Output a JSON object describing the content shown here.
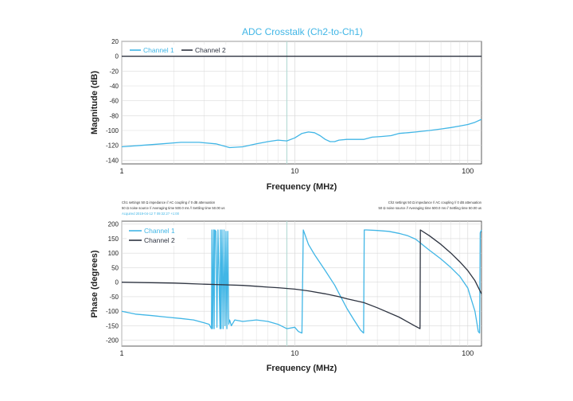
{
  "colors": {
    "channel1": "#41b6e6",
    "channel2": "#2d3340",
    "title": "#41b6e6",
    "marker": "#b7dbd6",
    "grid": "#d9d9d9"
  },
  "chart_data": [
    {
      "type": "line",
      "title": "ADC Crosstalk (Ch2-to-Ch1)",
      "xlabel": "Frequency (MHz)",
      "ylabel": "Magnitude (dB)",
      "xscale": "log",
      "xlim": [
        1,
        120
      ],
      "ylim": [
        -145,
        20
      ],
      "yticks": [
        20,
        0,
        -20,
        -40,
        -60,
        -80,
        -100,
        -120,
        -140
      ],
      "xtick_labels": [
        "1",
        "10",
        "100"
      ],
      "grid": true,
      "legend_position": "top-left",
      "vertical_marker_x": 9,
      "series": [
        {
          "name": "Channel 1",
          "x": [
            1,
            1.3,
            1.7,
            2.2,
            2.8,
            3.5,
            4.2,
            5,
            6,
            7,
            8,
            9,
            10,
            11,
            12,
            13,
            14,
            15,
            16,
            17,
            18,
            20,
            22,
            25,
            28,
            32,
            36,
            40,
            45,
            50,
            55,
            60,
            70,
            80,
            90,
            100,
            110,
            120
          ],
          "values": [
            -122,
            -120,
            -118,
            -116,
            -116,
            -118,
            -123,
            -122,
            -118,
            -115,
            -113,
            -114,
            -110,
            -104,
            -102,
            -103,
            -107,
            -112,
            -115,
            -115,
            -113,
            -112,
            -112,
            -112,
            -109,
            -108,
            -107,
            -104,
            -103,
            -102,
            -101,
            -100,
            -98,
            -96,
            -94,
            -92,
            -89,
            -85
          ]
        },
        {
          "name": "Channel 2",
          "x": [
            1,
            120
          ],
          "values": [
            0,
            0
          ]
        }
      ]
    },
    {
      "type": "line",
      "xlabel": "Frequency (MHz)",
      "ylabel": "Phase (degrees)",
      "xscale": "log",
      "xlim": [
        1,
        120
      ],
      "ylim": [
        -220,
        210
      ],
      "yticks": [
        200,
        150,
        100,
        50,
        0,
        -50,
        -100,
        -150,
        -200
      ],
      "xtick_labels": [
        "1",
        "10",
        "100"
      ],
      "grid": true,
      "legend_position": "top-left",
      "vertical_marker_x": 9,
      "series": [
        {
          "name": "Channel 1",
          "x": [
            1,
            1.2,
            1.5,
            1.8,
            2.2,
            2.6,
            3.0,
            3.2,
            3.3,
            3.32,
            3.35,
            3.4,
            3.42,
            3.45,
            3.5,
            3.55,
            3.6,
            3.7,
            3.72,
            3.75,
            3.8,
            3.85,
            3.9,
            3.95,
            4.0,
            4.05,
            4.1,
            4.15,
            4.2,
            4.3,
            4.5,
            5,
            6,
            7,
            8,
            9,
            10,
            10.5,
            11,
            11.2,
            12,
            13,
            15,
            17,
            20,
            22,
            24,
            25,
            25.2,
            26,
            30,
            35,
            40,
            45,
            50,
            55,
            60,
            70,
            80,
            90,
            100,
            110,
            115,
            117,
            118,
            120
          ],
          "values": [
            -100,
            -110,
            -115,
            -120,
            -125,
            -130,
            -140,
            -145,
            -160,
            180,
            -160,
            180,
            -160,
            180,
            175,
            -155,
            180,
            -160,
            180,
            -160,
            180,
            -160,
            180,
            -150,
            175,
            -160,
            175,
            -145,
            -130,
            -150,
            -130,
            -135,
            -130,
            -135,
            -145,
            -160,
            -155,
            -170,
            -175,
            180,
            130,
            95,
            40,
            -10,
            -90,
            -130,
            -165,
            -175,
            180,
            180,
            178,
            175,
            168,
            160,
            148,
            128,
            110,
            80,
            50,
            20,
            -20,
            -100,
            -170,
            -175,
            170,
            180
          ]
        },
        {
          "name": "Channel 2",
          "x": [
            1,
            2,
            3,
            4,
            5,
            6,
            7,
            8,
            10,
            12,
            15,
            18,
            20,
            25,
            30,
            40,
            50,
            53,
            53.2,
            60,
            70,
            80,
            90,
            100,
            110,
            120
          ],
          "values": [
            0,
            -3,
            -7,
            -9,
            -11,
            -14,
            -17,
            -19,
            -24,
            -30,
            -40,
            -50,
            -57,
            -70,
            -88,
            -120,
            -152,
            -160,
            180,
            160,
            130,
            100,
            70,
            40,
            5,
            -40
          ]
        }
      ],
      "notes": {
        "left_line1": "Ch1 settings 50 Ω impedance  //  AC coupling  //  0 dB attenuation",
        "left_line2": "50 Ω noise source  //  Averaging time 500.0 ms  //  Settling time 50.00 us",
        "left_line3": "Acquired 2019-04-12 T 09:32:27 +1:00",
        "right_line1": "Ch2 settings 50 Ω impedance  //  AC coupling  //  0 dB attenuation",
        "right_line2": "50 Ω noise source  //  Averaging time 500.0 ms  //  Settling time 50.00 us"
      }
    }
  ]
}
